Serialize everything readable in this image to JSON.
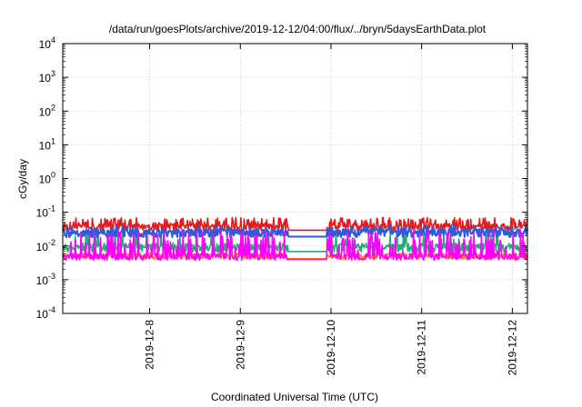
{
  "chart_data": {
    "type": "line",
    "title": "/data/run/goesPlots/archive/2019-12-12/04:00/flux/../bryn/5daysEarthData.plot",
    "xlabel": "Coordinated Universal Time (UTC)",
    "ylabel": "cGy/day",
    "yscale": "log",
    "ylim": [
      0.0001,
      10000
    ],
    "y_ticks": [
      {
        "value": 0.0001,
        "base": "10",
        "exp": "-4"
      },
      {
        "value": 0.001,
        "base": "10",
        "exp": "-3"
      },
      {
        "value": 0.01,
        "base": "10",
        "exp": "-2"
      },
      {
        "value": 0.1,
        "base": "10",
        "exp": "-1"
      },
      {
        "value": 1,
        "base": "10",
        "exp": "0"
      },
      {
        "value": 10,
        "base": "10",
        "exp": "1"
      },
      {
        "value": 100,
        "base": "10",
        "exp": "2"
      },
      {
        "value": 1000,
        "base": "10",
        "exp": "3"
      },
      {
        "value": 10000,
        "base": "10",
        "exp": "4"
      }
    ],
    "xlim": [
      "2019-12-07 01:00",
      "2019-12-12 04:00"
    ],
    "x_ticks": [
      {
        "value": "2019-12-08 00:00",
        "label": "2019-12-8"
      },
      {
        "value": "2019-12-09 00:00",
        "label": "2019-12-9"
      },
      {
        "value": "2019-12-10 00:00",
        "label": "2019-12-10"
      },
      {
        "value": "2019-12-11 00:00",
        "label": "2019-12-11"
      },
      {
        "value": "2019-12-12 00:00",
        "label": "2019-12-12"
      }
    ],
    "grid": true,
    "data_gap": [
      "2019-12-09 12:40",
      "2019-12-09 23:00"
    ],
    "series": [
      {
        "color": "#e41a1c",
        "base_low": 0.028,
        "base_high": 0.045,
        "spike_max": 0.07,
        "spiky": true
      },
      {
        "color": "#2f5bd8",
        "base_low": 0.018,
        "base_high": 0.032,
        "spike_max": 0.04,
        "spiky": false
      },
      {
        "color": "#1fae7a",
        "base_low": 0.0065,
        "base_high": 0.012,
        "spike_max": 0.03,
        "spiky": false
      },
      {
        "color": "#ff8c00",
        "base_low": 0.004,
        "base_high": 0.006,
        "spike_max": 0.006,
        "spiky": false
      },
      {
        "color": "#ff00ff",
        "base_low": 0.0038,
        "base_high": 0.006,
        "spike_max": 0.028,
        "spiky": true
      }
    ]
  }
}
